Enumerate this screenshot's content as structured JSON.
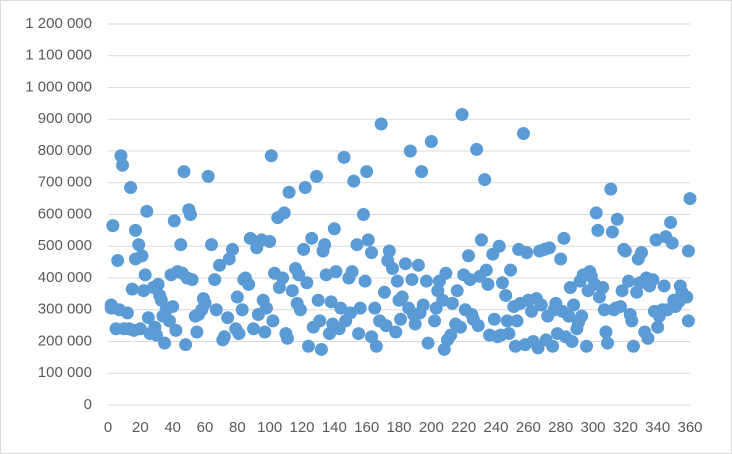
{
  "chart_data": {
    "type": "scatter",
    "color": "#5b9bd5",
    "grid": true,
    "xlim": [
      0,
      360
    ],
    "xticks": [
      0,
      20,
      40,
      60,
      80,
      100,
      120,
      140,
      160,
      180,
      200,
      220,
      240,
      260,
      280,
      300,
      320,
      340,
      360
    ],
    "ylim": [
      0,
      1200000
    ],
    "yticks": [
      0,
      {
        "value": 100000,
        "label": "100 000"
      },
      {
        "value": 200000,
        "label": "200 000"
      },
      {
        "value": 300000,
        "label": "300 000"
      },
      {
        "value": 400000,
        "label": "400 000"
      },
      {
        "value": 500000,
        "label": "500 000"
      },
      {
        "value": 600000,
        "label": "600 000"
      },
      {
        "value": 700000,
        "label": "700 000"
      },
      {
        "value": 800000,
        "label": "800 000"
      },
      {
        "value": 900000,
        "label": "900 000"
      },
      {
        "value": 1000000,
        "label": "1 000 000"
      },
      {
        "value": 1100000,
        "label": "1 100 000"
      },
      {
        "value": 1200000,
        "label": "1 200 000"
      }
    ],
    "x": [
      2,
      2,
      3,
      5,
      6,
      7,
      8,
      9,
      10,
      12,
      13,
      14,
      15,
      16,
      17,
      17,
      19,
      20,
      21,
      22,
      23,
      24,
      25,
      26,
      28,
      29,
      30,
      31,
      32,
      33,
      34,
      35,
      36,
      38,
      39,
      40,
      41,
      42,
      43,
      45,
      46,
      47,
      48,
      49,
      50,
      51,
      52,
      54,
      55,
      56,
      58,
      59,
      60,
      62,
      64,
      66,
      67,
      69,
      71,
      72,
      74,
      75,
      77,
      79,
      80,
      81,
      83,
      84,
      85,
      87,
      88,
      90,
      92,
      93,
      95,
      96,
      97,
      98,
      100,
      101,
      102,
      103,
      105,
      106,
      108,
      109,
      110,
      111,
      112,
      114,
      116,
      117,
      118,
      119,
      121,
      122,
      123,
      124,
      126,
      127,
      129,
      130,
      131,
      132,
      133,
      134,
      135,
      137,
      138,
      139,
      140,
      141,
      143,
      144,
      146,
      147,
      149,
      150,
      151,
      152,
      154,
      155,
      156,
      158,
      159,
      160,
      161,
      163,
      163,
      165,
      166,
      168,
      169,
      171,
      172,
      173,
      174,
      176,
      178,
      179,
      180,
      181,
      182,
      184,
      186,
      187,
      188,
      189,
      190,
      192,
      193,
      194,
      195,
      197,
      198,
      200,
      202,
      203,
      204,
      205,
      207,
      208,
      209,
      210,
      212,
      213,
      215,
      216,
      218,
      219,
      220,
      221,
      223,
      224,
      225,
      226,
      228,
      229,
      230,
      231,
      233,
      234,
      235,
      236,
      238,
      239,
      241,
      242,
      243,
      244,
      246,
      247,
      248,
      249,
      251,
      252,
      253,
      254,
      255,
      257,
      258,
      259,
      260,
      262,
      263,
      265,
      266,
      267,
      268,
      270,
      271,
      272,
      273,
      275,
      276,
      277,
      278,
      280,
      281,
      282,
      283,
      285,
      286,
      287,
      288,
      290,
      291,
      292,
      293,
      294,
      296,
      297,
      298,
      299,
      301,
      302,
      303,
      304,
      306,
      307,
      308,
      309,
      311,
      312,
      313,
      314,
      315,
      317,
      318,
      319,
      320,
      322,
      323,
      324,
      325,
      327,
      328,
      329,
      330,
      332,
      333,
      334,
      335,
      337,
      338,
      339,
      340,
      341,
      343,
      344,
      345,
      346,
      348,
      349,
      350,
      351,
      353,
      354,
      355,
      356,
      358,
      359,
      360,
      359
    ],
    "values": [
      305000,
      315000,
      565000,
      240000,
      455000,
      300000,
      785000,
      755000,
      240000,
      290000,
      240000,
      685000,
      365000,
      235000,
      460000,
      550000,
      505000,
      240000,
      470000,
      360000,
      410000,
      610000,
      275000,
      225000,
      370000,
      245000,
      220000,
      380000,
      345000,
      330000,
      280000,
      195000,
      300000,
      265000,
      410000,
      310000,
      580000,
      235000,
      420000,
      505000,
      415000,
      735000,
      190000,
      400000,
      615000,
      600000,
      395000,
      280000,
      230000,
      285000,
      300000,
      335000,
      320000,
      720000,
      505000,
      395000,
      300000,
      440000,
      205000,
      215000,
      275000,
      460000,
      490000,
      240000,
      340000,
      225000,
      300000,
      395000,
      400000,
      380000,
      525000,
      240000,
      495000,
      285000,
      520000,
      330000,
      230000,
      305000,
      515000,
      785000,
      265000,
      415000,
      590000,
      370000,
      400000,
      605000,
      225000,
      210000,
      670000,
      360000,
      430000,
      320000,
      410000,
      300000,
      490000,
      685000,
      385000,
      185000,
      525000,
      245000,
      720000,
      330000,
      265000,
      175000,
      485000,
      505000,
      410000,
      225000,
      325000,
      255000,
      555000,
      420000,
      240000,
      305000,
      780000,
      265000,
      400000,
      290000,
      420000,
      705000,
      505000,
      225000,
      305000,
      600000,
      390000,
      735000,
      520000,
      480000,
      215000,
      305000,
      185000,
      265000,
      885000,
      355000,
      250000,
      455000,
      485000,
      430000,
      230000,
      390000,
      330000,
      270000,
      340000,
      445000,
      305000,
      800000,
      395000,
      285000,
      255000,
      440000,
      290000,
      735000,
      315000,
      390000,
      195000,
      830000,
      265000,
      305000,
      360000,
      390000,
      330000,
      175000,
      415000,
      205000,
      220000,
      320000,
      255000,
      360000,
      245000,
      915000,
      410000,
      300000,
      470000,
      395000,
      285000,
      270000,
      805000,
      250000,
      405000,
      520000,
      710000,
      425000,
      380000,
      220000,
      475000,
      270000,
      215000,
      500000,
      220000,
      385000,
      345000,
      265000,
      225000,
      425000,
      310000,
      185000,
      265000,
      490000,
      320000,
      855000,
      190000,
      480000,
      330000,
      295000,
      200000,
      335000,
      180000,
      485000,
      315000,
      490000,
      205000,
      280000,
      495000,
      185000,
      300000,
      320000,
      225000,
      460000,
      295000,
      525000,
      215000,
      280000,
      370000,
      200000,
      315000,
      240000,
      260000,
      390000,
      280000,
      410000,
      185000,
      360000,
      420000,
      405000,
      380000,
      605000,
      550000,
      340000,
      370000,
      300000,
      230000,
      195000,
      680000,
      545000,
      300000,
      305000,
      585000,
      310000,
      360000,
      490000,
      485000,
      390000,
      285000,
      265000,
      185000,
      355000,
      460000,
      385000,
      480000,
      230000,
      400000,
      210000,
      375000,
      395000,
      295000,
      520000,
      245000,
      280000,
      300000,
      375000,
      530000,
      300000,
      575000,
      510000,
      330000,
      310000,
      325000,
      375000,
      355000,
      345000,
      340000,
      485000,
      650000,
      265000
    ]
  }
}
